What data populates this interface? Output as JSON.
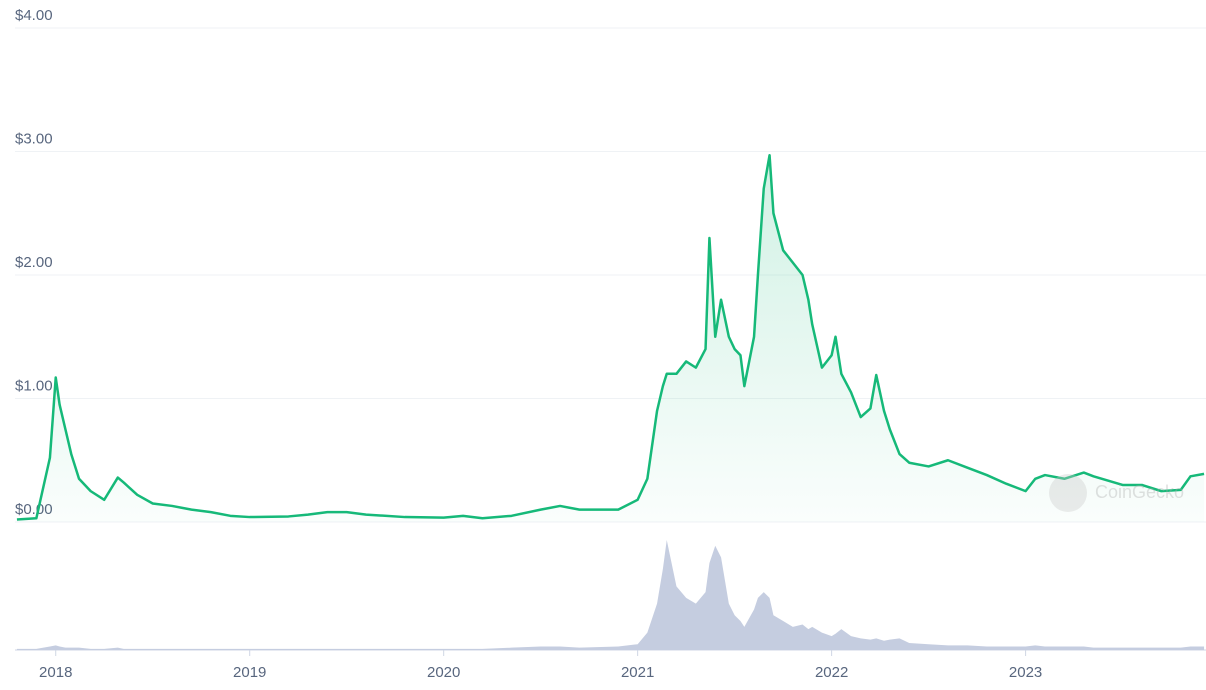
{
  "chart_data": {
    "type": "line",
    "watermark": "CoinGecko",
    "color": "#16b979",
    "volume_color": "#c5cde0",
    "grid": true,
    "xlim": [
      2017.79,
      2023.93
    ],
    "xticks": [
      2018,
      2019,
      2020,
      2021,
      2022,
      2023
    ],
    "ylim": [
      0,
      4
    ],
    "yticks": [
      {
        "value": 0,
        "label": "$0.00"
      },
      {
        "value": 1,
        "label": "$1.00"
      },
      {
        "value": 2,
        "label": "$2.00"
      },
      {
        "value": 3,
        "label": "$3.00"
      },
      {
        "value": 4,
        "label": "$4.00"
      }
    ],
    "x": [
      2017.8,
      2017.9,
      2017.97,
      2018.0,
      2018.02,
      2018.05,
      2018.08,
      2018.12,
      2018.18,
      2018.25,
      2018.32,
      2018.35,
      2018.42,
      2018.5,
      2018.6,
      2018.7,
      2018.8,
      2018.9,
      2019.0,
      2019.2,
      2019.3,
      2019.4,
      2019.5,
      2019.6,
      2019.8,
      2020.0,
      2020.1,
      2020.2,
      2020.35,
      2020.5,
      2020.6,
      2020.7,
      2020.9,
      2021.0,
      2021.05,
      2021.1,
      2021.13,
      2021.15,
      2021.2,
      2021.25,
      2021.3,
      2021.35,
      2021.37,
      2021.4,
      2021.43,
      2021.47,
      2021.5,
      2021.53,
      2021.55,
      2021.6,
      2021.62,
      2021.65,
      2021.68,
      2021.7,
      2021.75,
      2021.8,
      2021.85,
      2021.88,
      2021.9,
      2021.95,
      2022.0,
      2022.02,
      2022.05,
      2022.1,
      2022.15,
      2022.2,
      2022.23,
      2022.27,
      2022.3,
      2022.35,
      2022.4,
      2022.5,
      2022.6,
      2022.7,
      2022.8,
      2022.9,
      2023.0,
      2023.05,
      2023.1,
      2023.2,
      2023.3,
      2023.35,
      2023.5,
      2023.6,
      2023.7,
      2023.8,
      2023.85,
      2023.92
    ],
    "values": [
      0.02,
      0.03,
      0.52,
      1.17,
      0.95,
      0.75,
      0.55,
      0.35,
      0.25,
      0.18,
      0.36,
      0.32,
      0.22,
      0.15,
      0.13,
      0.1,
      0.08,
      0.05,
      0.04,
      0.045,
      0.06,
      0.08,
      0.08,
      0.06,
      0.04,
      0.035,
      0.05,
      0.03,
      0.05,
      0.1,
      0.13,
      0.1,
      0.1,
      0.18,
      0.35,
      0.9,
      1.1,
      1.2,
      1.2,
      1.3,
      1.25,
      1.4,
      2.3,
      1.5,
      1.8,
      1.5,
      1.4,
      1.35,
      1.1,
      1.5,
      2.0,
      2.7,
      2.97,
      2.5,
      2.2,
      2.1,
      2.0,
      1.8,
      1.6,
      1.25,
      1.35,
      1.5,
      1.2,
      1.05,
      0.85,
      0.92,
      1.19,
      0.9,
      0.75,
      0.55,
      0.48,
      0.45,
      0.5,
      0.44,
      0.38,
      0.31,
      0.25,
      0.35,
      0.38,
      0.35,
      0.4,
      0.37,
      0.3,
      0.3,
      0.25,
      0.26,
      0.37,
      0.39
    ],
    "volume": [
      1,
      1,
      3,
      4,
      3,
      2,
      2,
      2,
      1,
      1,
      2,
      1,
      1,
      1,
      1,
      1,
      1,
      1,
      1,
      1,
      1,
      1,
      1,
      1,
      1,
      1,
      1,
      1,
      2,
      3,
      3,
      2,
      3,
      5,
      15,
      40,
      70,
      95,
      55,
      45,
      40,
      50,
      75,
      90,
      80,
      40,
      30,
      25,
      20,
      35,
      45,
      50,
      45,
      30,
      25,
      20,
      22,
      18,
      20,
      15,
      12,
      14,
      18,
      12,
      10,
      9,
      10,
      8,
      9,
      10,
      6,
      5,
      4,
      4,
      3,
      3,
      3,
      4,
      3,
      3,
      3,
      2,
      2,
      2,
      2,
      2,
      3,
      3
    ]
  }
}
